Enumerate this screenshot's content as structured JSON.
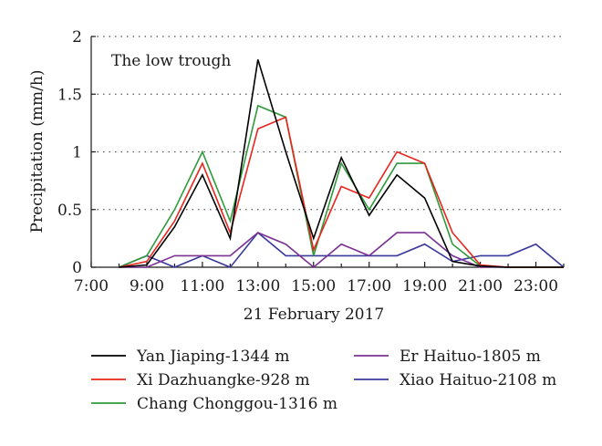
{
  "chart_data": {
    "type": "line",
    "xlabel": "21 February 2017",
    "ylabel": "Precipitation (mm/h)",
    "annotation": "The low trough",
    "xlim": [
      7,
      24
    ],
    "ylim": [
      0,
      2
    ],
    "grid": "horizontal dotted",
    "legend": "bottom",
    "x_ticks": [
      "7:00",
      "9:00",
      "11:00",
      "13:00",
      "15:00",
      "17:00",
      "19:00",
      "21:00",
      "23:00"
    ],
    "y_ticks": [
      "0",
      "0.5",
      "1",
      "1.5",
      "2"
    ],
    "x": [
      8,
      9,
      10,
      11,
      12,
      13,
      14,
      15,
      16,
      17,
      18,
      19,
      20,
      21,
      22,
      23,
      24
    ],
    "series": [
      {
        "name": "Yan Jiaping-1344 m",
        "color": "#000000",
        "values": [
          0,
          0.02,
          0.35,
          0.8,
          0.25,
          1.8,
          1.0,
          0.25,
          0.95,
          0.45,
          0.8,
          0.6,
          0.05,
          0.01,
          0,
          0,
          0
        ]
      },
      {
        "name": "Xi Dazhuangke-928 m",
        "color": "#e8261e",
        "values": [
          0,
          0.05,
          0.4,
          0.9,
          0.3,
          1.2,
          1.3,
          0.15,
          0.7,
          0.6,
          1.0,
          0.9,
          0.3,
          0.02,
          0,
          0,
          0
        ]
      },
      {
        "name": "Chang Chonggou-1316 m",
        "color": "#2e9a3a",
        "values": [
          0,
          0.1,
          0.5,
          1.0,
          0.4,
          1.4,
          1.3,
          0.1,
          0.9,
          0.5,
          0.9,
          0.9,
          0.2,
          0.01,
          0,
          0,
          0
        ]
      },
      {
        "name": "Er Haituo-1805 m",
        "color": "#7b3294",
        "values": [
          0,
          0,
          0.1,
          0.1,
          0.1,
          0.3,
          0.2,
          0,
          0.2,
          0.1,
          0.3,
          0.3,
          0.1,
          0,
          0,
          0,
          0
        ]
      },
      {
        "name": "Xiao Haituo-2108 m",
        "color": "#3a3a9c",
        "values": [
          0,
          0.1,
          0,
          0.1,
          0,
          0.3,
          0.1,
          0.1,
          0.1,
          0.1,
          0.1,
          0.2,
          0.05,
          0.1,
          0.1,
          0.2,
          0
        ]
      }
    ]
  }
}
